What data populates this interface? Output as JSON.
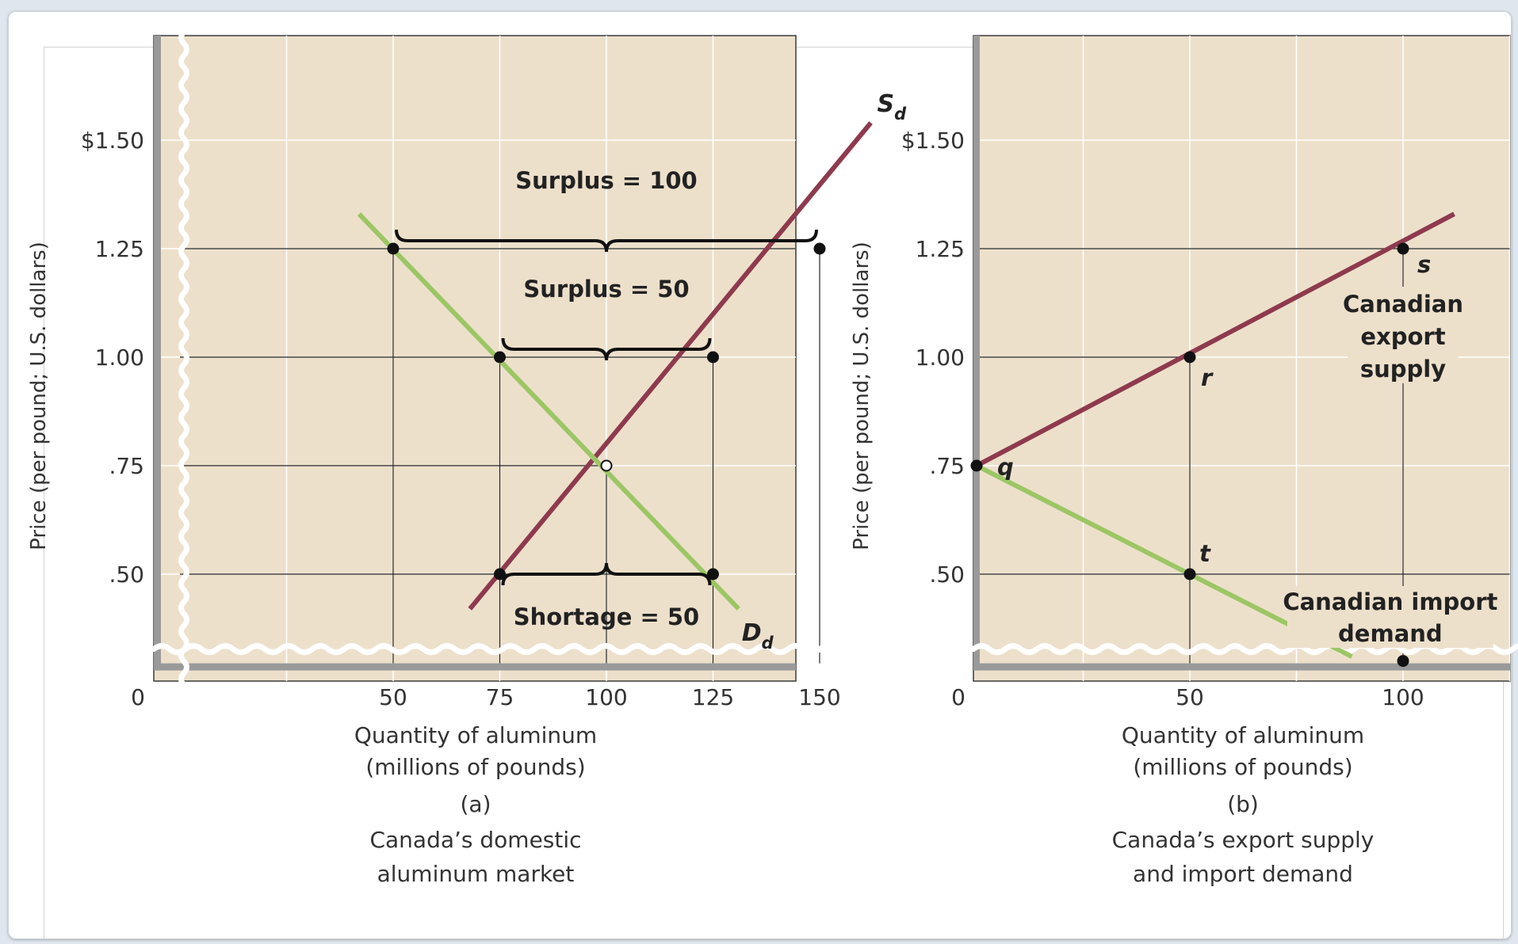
{
  "colors": {
    "plot_bg": "#ede0cb",
    "supply": "#8e3a4e",
    "demand": "#9cc665",
    "grid": "#ffffff",
    "guide": "#222222",
    "axis": "#9a9a9a"
  },
  "chart_data": [
    {
      "type": "line",
      "id": "a",
      "panel_label": "(a)",
      "caption_line1": "Canada’s domestic",
      "caption_line2": "aluminum market",
      "xlabel_line1": "Quantity of aluminum",
      "xlabel_line2": "(millions of pounds)",
      "ylabel": "Price (per pound; U.S. dollars)",
      "xlim": [
        0,
        170
      ],
      "ylim": [
        0.3,
        1.8
      ],
      "axis_break": true,
      "grid": true,
      "x_ticks": [
        50,
        75,
        100,
        125,
        150
      ],
      "x_tick_labels": [
        "50",
        "75",
        "100",
        "125",
        "150"
      ],
      "origin_label": "0",
      "y_ticks": [
        0.5,
        0.75,
        1.0,
        1.25,
        1.5
      ],
      "y_tick_labels": [
        ".50",
        ".75",
        "1.00",
        "1.25",
        "$1.50"
      ],
      "series": [
        {
          "name": "Sd",
          "label_main": "S",
          "label_sub": "d",
          "color": "supply",
          "x": [
            68,
            162
          ],
          "y": [
            0.42,
            1.54
          ]
        },
        {
          "name": "Dd",
          "label_main": "D",
          "label_sub": "d",
          "color": "demand",
          "x": [
            42,
            131
          ],
          "y": [
            1.33,
            0.42
          ]
        }
      ],
      "points": [
        {
          "x": 50,
          "y": 1.25
        },
        {
          "x": 150,
          "y": 1.25
        },
        {
          "x": 75,
          "y": 1.0
        },
        {
          "x": 125,
          "y": 1.0
        },
        {
          "x": 75,
          "y": 0.5
        },
        {
          "x": 125,
          "y": 0.5
        }
      ],
      "open_points": [
        {
          "x": 100,
          "y": 0.75
        }
      ],
      "guide_lines": {
        "horizontal": [
          {
            "y": 1.25,
            "x0": 0,
            "x1": 150
          },
          {
            "y": 1.0,
            "x0": 0,
            "x1": 125
          },
          {
            "y": 0.75,
            "x0": 0,
            "x1": 100
          },
          {
            "y": 0.5,
            "x0": 0,
            "x1": 125
          }
        ],
        "vertical": [
          {
            "x": 50,
            "y1": 1.25
          },
          {
            "x": 75,
            "y1": 1.0
          },
          {
            "x": 100,
            "y1": 0.75
          },
          {
            "x": 125,
            "y1": 1.0
          },
          {
            "x": 150,
            "y1": 1.25
          }
        ]
      },
      "braces": [
        {
          "x0": 50,
          "x1": 150,
          "y": 1.25,
          "direction": "up",
          "label": "Surplus = 100"
        },
        {
          "x0": 75,
          "x1": 125,
          "y": 1.0,
          "direction": "up",
          "label": "Surplus = 50"
        },
        {
          "x0": 75,
          "x1": 125,
          "y": 0.5,
          "direction": "down",
          "label": "Shortage = 50"
        }
      ]
    },
    {
      "type": "line",
      "id": "b",
      "panel_label": "(b)",
      "caption_line1": "Canada’s export supply",
      "caption_line2": "and import demand",
      "xlabel_line1": "Quantity of aluminum",
      "xlabel_line2": "(millions of pounds)",
      "ylabel": "Price (per pound; U.S. dollars)",
      "xlim": [
        0,
        125
      ],
      "ylim": [
        0.3,
        1.8
      ],
      "axis_break": true,
      "grid": true,
      "x_ticks": [
        50,
        100
      ],
      "x_tick_labels": [
        "50",
        "100"
      ],
      "origin_label": "0",
      "y_ticks": [
        0.5,
        0.75,
        1.0,
        1.25,
        1.5
      ],
      "y_tick_labels": [
        ".50",
        ".75",
        "1.00",
        "1.25",
        "$1.50"
      ],
      "series": [
        {
          "name": "Canadian export supply",
          "label_lines": [
            "Canadian",
            "export",
            "supply"
          ],
          "color": "supply",
          "x": [
            0,
            112
          ],
          "y": [
            0.75,
            1.33
          ]
        },
        {
          "name": "Canadian import demand",
          "label_lines": [
            "Canadian import",
            "demand"
          ],
          "color": "demand",
          "x": [
            0,
            88
          ],
          "y": [
            0.75,
            0.31
          ]
        }
      ],
      "points": [
        {
          "x": 0,
          "y": 0.75,
          "label": "q"
        },
        {
          "x": 50,
          "y": 1.0,
          "label": "r"
        },
        {
          "x": 100,
          "y": 1.25,
          "label": "s"
        },
        {
          "x": 50,
          "y": 0.5,
          "label": "t"
        },
        {
          "x": 100,
          "y": 0.3,
          "label": ""
        }
      ],
      "guide_lines": {
        "horizontal": [
          {
            "y": 1.25,
            "x0": 0,
            "x1": 125
          },
          {
            "y": 1.0,
            "x0": 0,
            "x1": 50
          },
          {
            "y": 0.5,
            "x0": 0,
            "x1": 125
          }
        ],
        "vertical": [
          {
            "x": 50,
            "y1": 1.0
          },
          {
            "x": 100,
            "y1": 1.25
          }
        ]
      }
    }
  ]
}
